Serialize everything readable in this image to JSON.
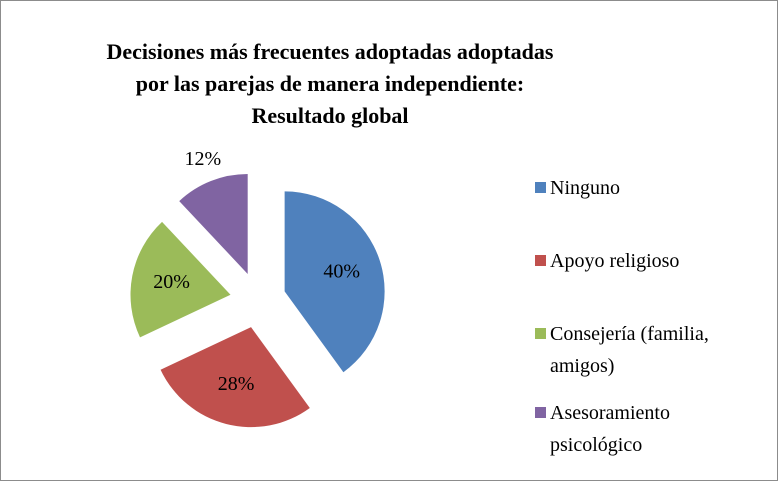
{
  "chart_data": {
    "type": "pie",
    "title": "Decisiones más frecuentes adoptadas adoptadas por las parejas de manera independiente: Resultado global",
    "categories": [
      "Ninguno",
      "Apoyo religioso",
      "Consejería (familia, amigos)",
      "Asesoramiento psicológico"
    ],
    "values": [
      40,
      28,
      20,
      12
    ],
    "value_labels": [
      "40%",
      "28%",
      "20%",
      "12%"
    ],
    "colors": [
      "#4f81bd",
      "#c0504d",
      "#9bbb59",
      "#8064a2"
    ],
    "legend": "right"
  }
}
